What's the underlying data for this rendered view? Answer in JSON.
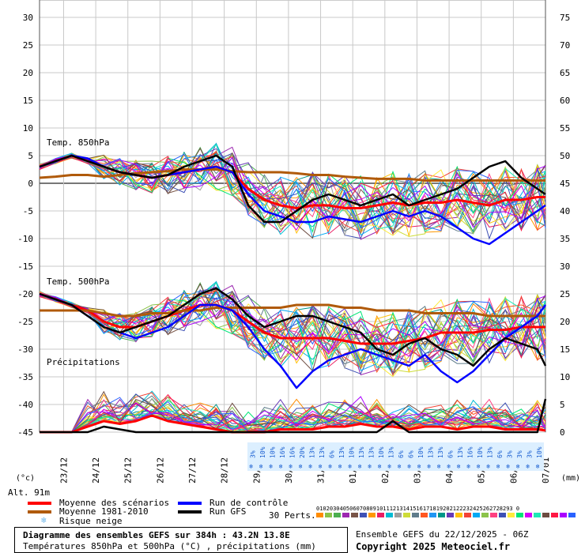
{
  "chart_data": {
    "type": "line",
    "y_left_ticks": [
      30,
      25,
      20,
      15,
      10,
      5,
      0,
      -5,
      -10,
      -15,
      -20,
      -25,
      -30,
      -35,
      -40,
      -45
    ],
    "y_right_ticks": [
      75,
      70,
      65,
      60,
      55,
      50,
      45,
      40,
      35,
      30,
      25,
      20,
      15,
      10,
      5,
      0
    ],
    "y_left_unit": "(°c)",
    "y_right_unit": "(mm)",
    "ylim_left": [
      -45,
      30
    ],
    "ylim_right": [
      0,
      75
    ],
    "x_ticks": [
      "23/12",
      "24/12",
      "25/12",
      "26/12",
      "27/12",
      "28/12",
      "29/12",
      "30/12",
      "31/12",
      "01/01",
      "02/01",
      "03/01",
      "04/01",
      "05/01",
      "06/01",
      "07/01"
    ],
    "grid": true,
    "panel_labels": {
      "t850": "Temp. 850hPa",
      "t500": "Temp. 500hPa",
      "precip": "Précipitations"
    },
    "snow_risk_values": [
      "3%",
      "10%",
      "10%",
      "16%",
      "16%",
      "20%",
      "13%",
      "13%",
      "6%",
      "13%",
      "10%",
      "13%",
      "13%",
      "10%",
      "13%",
      "6%",
      "6%",
      "10%",
      "13%",
      "13%",
      "6%",
      "13%",
      "16%",
      "10%",
      "13%",
      "6%",
      "3%",
      "3%",
      "3%",
      "10%"
    ],
    "x": [
      0,
      0.5,
      1,
      1.5,
      2,
      2.5,
      3,
      3.5,
      4,
      4.5,
      5,
      5.5,
      6,
      6.5,
      7,
      7.5,
      8,
      8.5,
      9,
      9.5,
      10,
      10.5,
      11,
      11.5,
      12,
      12.5,
      13,
      13.5,
      14,
      14.5,
      15,
      15.5,
      15.75
    ],
    "series": [
      {
        "name": "Moyenne des scénarios",
        "group": "t850",
        "color": "#ff0000",
        "values": [
          3,
          4,
          5,
          4,
          3,
          2,
          1.5,
          1,
          1.5,
          2,
          2.5,
          3,
          2,
          -1,
          -3,
          -4,
          -4.5,
          -4,
          -4,
          -4.5,
          -4.5,
          -4,
          -3.5,
          -4,
          -3.5,
          -3.5,
          -3,
          -3.5,
          -4,
          -3,
          -3,
          -2.5,
          -2.5
        ]
      },
      {
        "name": "Moyenne 1981-2010",
        "group": "t850",
        "color": "#b05a0a",
        "values": [
          1,
          1.2,
          1.5,
          1.5,
          1.2,
          1.5,
          1.8,
          2,
          2.2,
          2.5,
          2.5,
          2.5,
          2.2,
          2,
          2,
          2,
          1.8,
          1.5,
          1.5,
          1.2,
          1,
          0.8,
          0.8,
          0.8,
          0.5,
          0.5,
          0.5,
          0.5,
          0.5,
          0.5,
          0.5,
          0.5,
          0.5
        ]
      },
      {
        "name": "Run de contrôle",
        "group": "t850",
        "color": "#0000ff",
        "values": [
          3,
          4,
          5,
          4.5,
          3,
          2,
          1.5,
          1,
          1.5,
          2,
          2.5,
          3,
          2,
          -2,
          -5,
          -6,
          -7,
          -7,
          -6,
          -6.5,
          -7,
          -6,
          -5,
          -6,
          -5,
          -6,
          -8,
          -10,
          -11,
          -9,
          -7,
          -5,
          -4
        ]
      },
      {
        "name": "Run GFS",
        "group": "t850",
        "color": "#000000",
        "values": [
          3,
          4,
          5,
          4,
          3,
          2,
          1.5,
          1,
          1.5,
          3,
          4,
          5,
          3,
          -4,
          -7,
          -7,
          -5,
          -3,
          -2,
          -3,
          -4,
          -3,
          -2,
          -4,
          -3,
          -2,
          -1,
          1,
          3,
          4,
          1,
          -1,
          -2
        ]
      },
      {
        "name": "Moyenne des scénarios",
        "group": "t500",
        "color": "#ff0000",
        "values": [
          -20,
          -21,
          -22,
          -23,
          -25,
          -26,
          -26,
          -25,
          -24,
          -23,
          -22,
          -22,
          -23,
          -25,
          -27,
          -28,
          -28,
          -28,
          -28,
          -28.5,
          -29,
          -29,
          -29,
          -28.5,
          -28,
          -27,
          -27,
          -27,
          -26.5,
          -26.5,
          -26,
          -26,
          -26
        ]
      },
      {
        "name": "Moyenne 1981-2010",
        "group": "t500",
        "color": "#b05a0a",
        "values": [
          -23,
          -23,
          -23,
          -23,
          -23.5,
          -24,
          -24,
          -23.5,
          -23.5,
          -23,
          -23,
          -22.5,
          -22.5,
          -22.5,
          -22.5,
          -22.5,
          -22,
          -22,
          -22,
          -22.5,
          -22.5,
          -23,
          -23,
          -23,
          -23.5,
          -23.5,
          -23.5,
          -23.5,
          -24,
          -24,
          -24,
          -24,
          -24
        ]
      },
      {
        "name": "Run de contrôle",
        "group": "t500",
        "color": "#0000ff",
        "values": [
          -20,
          -21,
          -22,
          -24,
          -26,
          -27,
          -28,
          -27,
          -26,
          -24,
          -22,
          -22,
          -23,
          -26,
          -30,
          -33,
          -37,
          -34,
          -32,
          -31,
          -30,
          -31,
          -32,
          -33,
          -31,
          -34,
          -36,
          -34,
          -31,
          -28,
          -26,
          -24,
          -22
        ]
      },
      {
        "name": "Run GFS",
        "group": "t500",
        "color": "#000000",
        "values": [
          -20,
          -21,
          -22,
          -24,
          -26,
          -27,
          -26,
          -25,
          -24,
          -22,
          -20,
          -19,
          -21,
          -24,
          -26,
          -25,
          -24,
          -24,
          -25,
          -26,
          -27,
          -30,
          -31,
          -29,
          -28,
          -30,
          -31,
          -33,
          -30,
          -28,
          -29,
          -30,
          -33
        ]
      },
      {
        "name": "Moyenne des scénarios",
        "group": "precip",
        "color": "#ff0000",
        "values": [
          0,
          0,
          0,
          1,
          2,
          1.5,
          2,
          3,
          2,
          1.5,
          1,
          0.5,
          0,
          0,
          0,
          0.5,
          0.5,
          0.5,
          1,
          1,
          1.5,
          1,
          1,
          0.5,
          1,
          1,
          0.5,
          1,
          1,
          0.5,
          0.5,
          0.5,
          0.3
        ]
      },
      {
        "name": "Run GFS",
        "group": "precip",
        "color": "#000000",
        "values": [
          0,
          0,
          0,
          0,
          1,
          0.5,
          0,
          0,
          0,
          0,
          0,
          0,
          0,
          0,
          0,
          0,
          0,
          0,
          0,
          0,
          0,
          0,
          2,
          0,
          0,
          0,
          0,
          0,
          0,
          0,
          0,
          0,
          6
        ]
      }
    ]
  },
  "legend": {
    "mean": "Moyenne des scénarios",
    "climo": "Moyenne 1981-2010",
    "snow": "Risque neige",
    "control": "Run de contrôle",
    "gfs": "Run GFS",
    "perts_label": "30 Perts.",
    "perts_numbers": "01020304050607080910111213141516171819202122232425262728293 0"
  },
  "altitude": "Alt. 91m",
  "footer": {
    "title": "Diagramme des ensembles GEFS sur 384h : 43.2N 13.8E",
    "subtitle": "Températures 850hPa et 500hPa (°C) , précipitations (mm)"
  },
  "ensemble_label": "Ensemble GEFS du 22/12/2025 - 06Z",
  "copyright": "Copyright 2025 Meteociel.fr",
  "colors": {
    "mean": "#ff0000",
    "climo": "#b05a0a",
    "control": "#0000ff",
    "gfs": "#000000",
    "snow": "#8ec8f0",
    "perts": [
      "#ff8c00",
      "#8bc34a",
      "#4caf50",
      "#9c27b0",
      "#795548",
      "#3f51b5",
      "#ff9800",
      "#e91e63",
      "#00bcd4",
      "#9e9e9e",
      "#cddc39",
      "#607d8b",
      "#ff5722",
      "#2196f3",
      "#009688",
      "#673ab7",
      "#ffc107",
      "#f44336",
      "#03a9f4",
      "#8bc34a",
      "#ff4081",
      "#3f51b5",
      "#ffeb3b",
      "#00e676",
      "#d500f9",
      "#1de9b6",
      "#6d4c41",
      "#ff1744",
      "#aa00ff",
      "#2962ff"
    ]
  }
}
